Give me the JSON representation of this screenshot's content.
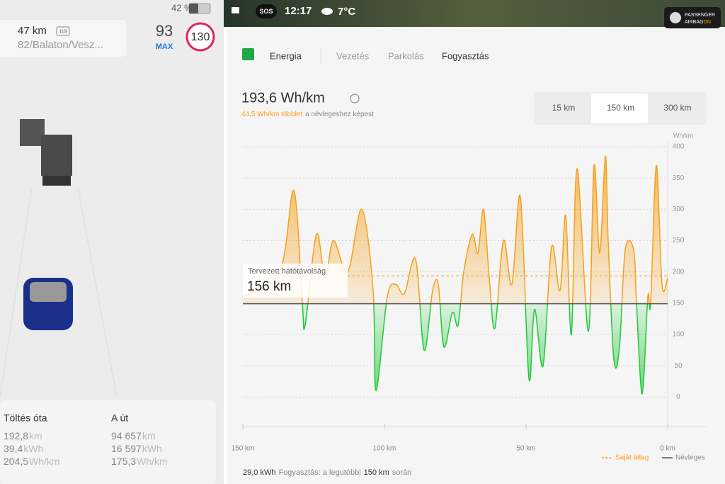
{
  "status": {
    "battery": "42 %",
    "distance": "47 km",
    "road_badge": "119",
    "road": "82/Balaton/Vesz...",
    "speed": "93",
    "speed_unit": "MAX",
    "limit": "130"
  },
  "topbar": {
    "sos": "SOS",
    "time": "12:17",
    "temperature": "7°C",
    "airbag_label": "PASSENGER",
    "airbag_word": "AIRBAG",
    "airbag_state": "ON"
  },
  "tabs": [
    "Energia",
    "Vezetés",
    "Parkolás",
    "Fogyasztás"
  ],
  "summary": {
    "value": "193,6 Wh/km",
    "delta": "44,5 Wh/km többlet",
    "delta_suffix": "a névlegeshez képest"
  },
  "ranges": [
    "15 km",
    "150 km",
    "300 km"
  ],
  "range_overlay": {
    "label": "Tervezett hatótávolság",
    "value": "156 km"
  },
  "footer": {
    "energy": "29,0 kWh",
    "text": "Fogyasztás: a legutóbbi",
    "distance": "150 km",
    "suffix": "során"
  },
  "trip_stats": [
    {
      "title": "Töltés óta",
      "rows": [
        [
          "192,8",
          "km"
        ],
        [
          "39,4",
          "kWh"
        ],
        [
          "204,5",
          "Wh/km"
        ]
      ]
    },
    {
      "title": "A út",
      "rows": [
        [
          "94 657",
          "km"
        ],
        [
          "16 597",
          "kWh"
        ],
        [
          "175,3",
          "Wh/km"
        ]
      ]
    }
  ],
  "chart_data": {
    "type": "area",
    "y_axis_label": "Wh/km",
    "x": [
      150,
      137,
      132,
      129,
      128,
      124,
      121,
      118,
      113,
      108,
      104,
      103,
      99,
      96,
      93,
      89,
      86,
      83,
      81,
      79,
      76,
      74,
      72,
      69,
      67,
      65,
      63,
      61,
      58,
      55,
      52,
      49,
      47,
      44,
      41,
      38,
      36,
      34,
      32,
      28,
      26,
      24,
      22,
      21,
      19,
      17,
      15,
      12,
      11,
      9,
      7,
      6,
      4,
      2,
      0
    ],
    "values": [
      160,
      200,
      330,
      150,
      115,
      260,
      190,
      250,
      200,
      300,
      170,
      10,
      160,
      180,
      165,
      220,
      75,
      170,
      180,
      80,
      135,
      115,
      200,
      260,
      230,
      300,
      190,
      110,
      250,
      180,
      320,
      30,
      140,
      50,
      240,
      170,
      290,
      100,
      365,
      105,
      370,
      230,
      385,
      250,
      60,
      80,
      235,
      235,
      150,
      5,
      160,
      150,
      370,
      180,
      190
    ],
    "xlim": [
      150,
      0
    ],
    "ylim": [
      -20,
      400
    ],
    "xticks": [
      {
        "value": 150,
        "label": "150 km"
      },
      {
        "value": 100,
        "label": "100 km"
      },
      {
        "value": 50,
        "label": "50 km"
      },
      {
        "value": 0,
        "label": "0 km"
      }
    ],
    "yticks": [
      0,
      50,
      100,
      150,
      200,
      250,
      300,
      350,
      400
    ],
    "grid": true,
    "color_above": "#f5a01a",
    "color_below": "#22c83a",
    "reference_lines": [
      {
        "name": "Saját átlag",
        "value": 193.6,
        "color": "#f5a01a",
        "style": "dashed"
      },
      {
        "name": "Névleges",
        "value": 149.1,
        "color": "#555555",
        "style": "solid"
      }
    ]
  }
}
